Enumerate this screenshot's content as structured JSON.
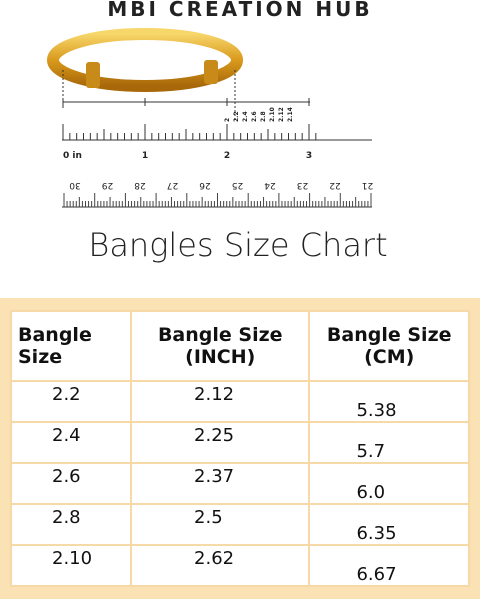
{
  "header": {
    "brand": "MBI CREATION HUB"
  },
  "inch_ruler": {
    "labels": [
      "0 in",
      "1",
      "2",
      "3"
    ],
    "size_marks": [
      "2",
      "2.2",
      "2.4",
      "2.6",
      "2.8",
      "2.10",
      "2.12",
      "2.14"
    ]
  },
  "cm_ruler": {
    "labels": [
      "30",
      "29",
      "28",
      "27",
      "26",
      "25",
      "24",
      "23",
      "22",
      "21"
    ]
  },
  "title": "Bangles Size Chart",
  "table": {
    "header": [
      "Bangle Size",
      "Bangle Size (INCH)",
      "Bangle Size (CM)"
    ],
    "rows": [
      [
        "2.2",
        "2.12",
        "5.38"
      ],
      [
        "2.4",
        "2.25",
        "5.7"
      ],
      [
        "2.6",
        "2.37",
        "6.0"
      ],
      [
        "2.8",
        "2.5",
        "6.35"
      ],
      [
        "2.10",
        "2.62",
        "6.67"
      ]
    ]
  }
}
